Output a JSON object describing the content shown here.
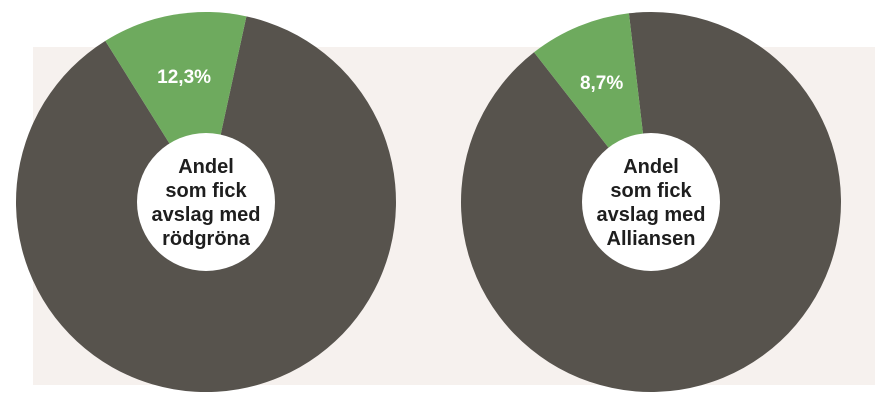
{
  "colors": {
    "remainder": "#57534d",
    "highlight": "#6eaa5e",
    "hole": "#ffffff",
    "panel": "#f6f1ee"
  },
  "chart_data": [
    {
      "type": "pie",
      "style": "donut",
      "center_label": [
        "Andel",
        "som fick",
        "avslag med",
        "rödgröna"
      ],
      "slices": [
        {
          "label": "12,3%",
          "value": 12.3,
          "color": "#6eaa5e"
        },
        {
          "label": "",
          "value": 87.7,
          "color": "#57534d"
        }
      ]
    },
    {
      "type": "pie",
      "style": "donut",
      "center_label": [
        "Andel",
        "som fick",
        "avslag med",
        "Alliansen"
      ],
      "slices": [
        {
          "label": "8,7%",
          "value": 8.7,
          "color": "#6eaa5e"
        },
        {
          "label": "",
          "value": 91.3,
          "color": "#57534d"
        }
      ]
    }
  ]
}
